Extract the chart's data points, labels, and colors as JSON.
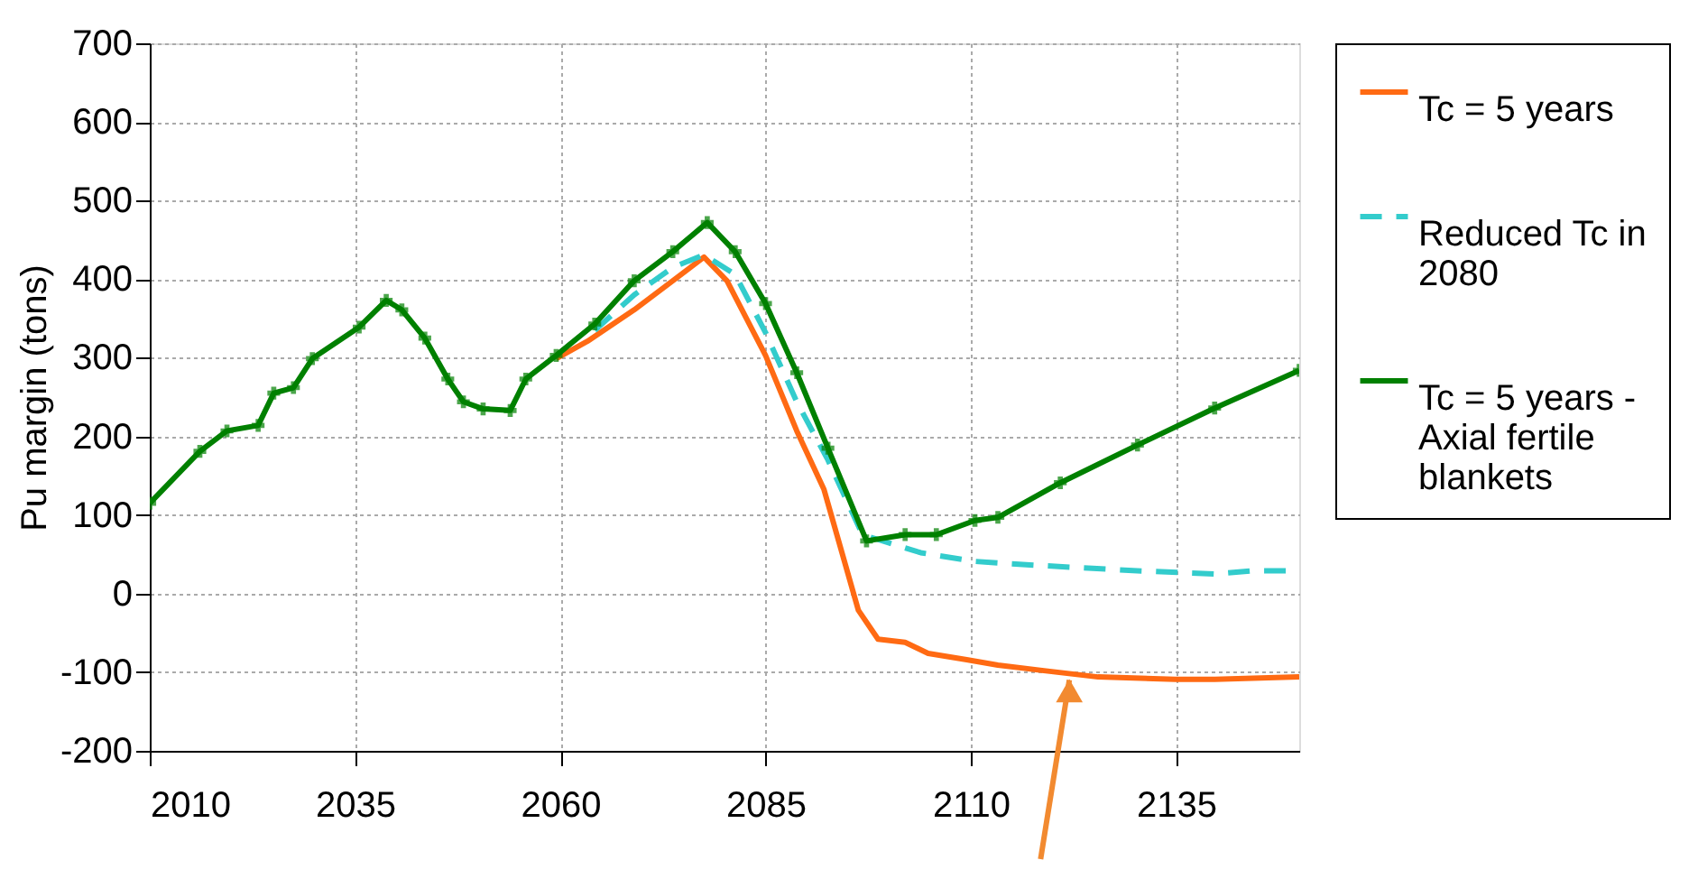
{
  "chart_data": {
    "type": "line",
    "ylabel": "Pu margin (tons)",
    "xlim": [
      2010,
      2150
    ],
    "xticks": [
      2010,
      2035,
      2060,
      2085,
      2110,
      2135
    ],
    "ylim": [
      -200,
      700
    ],
    "yticks": [
      -200,
      -100,
      0,
      100,
      200,
      300,
      400,
      500,
      600,
      700
    ],
    "grid": true,
    "legend": "right",
    "series": [
      {
        "name": "Tc = 5 years",
        "color": "#ff6a13",
        "line_style": "solid",
        "marker": "none",
        "x": [
          2059.5,
          2063.3,
          2069,
          2073.7,
          2077.5,
          2080.3,
          2085,
          2088.8,
          2092.1,
          2096.3,
          2098.7,
          2102,
          2104.8,
          2109.5,
          2113.3,
          2118.9,
          2125.5,
          2134.9,
          2139.7,
          2150
        ],
        "values": [
          299,
          321,
          361,
          398,
          428,
          398,
          303,
          207,
          133,
          -21,
          -58,
          -62,
          -76,
          -84,
          -91,
          -98,
          -106,
          -109,
          -109,
          -106
        ]
      },
      {
        "name": "Reduced Tc in 2080",
        "color": "#33cccc",
        "line_style": "dashed",
        "marker": "none",
        "x": [
          2064.2,
          2069,
          2073.7,
          2077.5,
          2081.3,
          2085,
          2088.8,
          2092.6,
          2096.8,
          2103.9,
          2110.5,
          2118,
          2130.3,
          2139.7,
          2144.4,
          2150
        ],
        "values": [
          335,
          380,
          415,
          431,
          406,
          332,
          244,
          170,
          75,
          52,
          41,
          36,
          29,
          25,
          29,
          29
        ]
      },
      {
        "name": "Tc = 5 years - Axial fertile blankets",
        "color": "#008000",
        "line_style": "solid",
        "marker": "cross",
        "x": [
          2010,
          2016.1,
          2019.4,
          2023.2,
          2025.1,
          2027.5,
          2029.8,
          2035.5,
          2038.8,
          2040.7,
          2043.5,
          2046.3,
          2048.2,
          2050.6,
          2053.9,
          2055.8,
          2059.5,
          2064.2,
          2069,
          2073.7,
          2077.9,
          2081.3,
          2085,
          2088.8,
          2092.6,
          2097.3,
          2102,
          2105.8,
          2110.5,
          2113.3,
          2120.9,
          2130.3,
          2139.7,
          2150
        ],
        "values": [
          115,
          181,
          207,
          214,
          255,
          262,
          299,
          339,
          373,
          361,
          325,
          273,
          244,
          235,
          233,
          273,
          303,
          343,
          398,
          435,
          472,
          435,
          369,
          281,
          185,
          67,
          75,
          75,
          93,
          97,
          141,
          189,
          236,
          284
        ]
      }
    ]
  }
}
